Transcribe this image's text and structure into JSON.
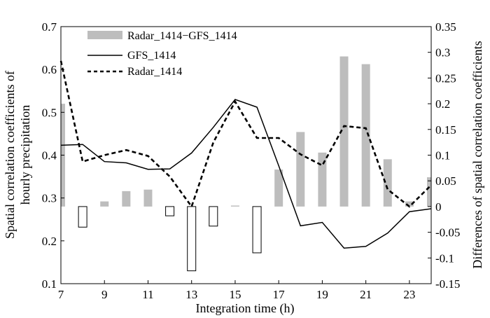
{
  "chart_data": {
    "type": "bar+line",
    "title": "",
    "xlabel": "Integration time (h)",
    "ylabel_left": "Spatial correlation coefficients of hourly precipitation",
    "ylabel_left_lines": [
      "Spatial correlation coefficients of",
      "hourly precipitation"
    ],
    "ylabel_right": "Differences of spatial correlation coefficients",
    "x_ticks": [
      7,
      9,
      11,
      13,
      15,
      17,
      19,
      21,
      23
    ],
    "xlim": [
      7,
      24
    ],
    "ylim_left": [
      0.1,
      0.7
    ],
    "ylim_right": [
      -0.15,
      0.35
    ],
    "y_ticks_left": [
      "0.1",
      "0.2",
      "0.3",
      "0.4",
      "0.5",
      "0.6",
      "0.7"
    ],
    "y_ticks_right": [
      "-0.15",
      "-0.1",
      "-0.05",
      "0",
      "0.05",
      "0.1",
      "0.15",
      "0.2",
      "0.25",
      "0.3",
      "0.35"
    ],
    "legend_position": "top-left",
    "colors": {
      "positive_bar": "#bdbdbd",
      "negative_bar_fill": "#ffffff",
      "stroke": "#000000"
    },
    "series": [
      {
        "name": "Radar_1414−GFS_1414",
        "kind": "bar",
        "axis": "right",
        "x": [
          7,
          8,
          9,
          10,
          11,
          12,
          13,
          14,
          15,
          16,
          17,
          18,
          19,
          20,
          21,
          22,
          23,
          24
        ],
        "values": [
          0.2,
          -0.04,
          0.01,
          0.03,
          0.033,
          -0.018,
          -0.125,
          -0.038,
          0.002,
          -0.09,
          0.072,
          0.145,
          0.105,
          0.292,
          0.277,
          0.092,
          0.01,
          0.057
        ]
      },
      {
        "name": "GFS_1414",
        "kind": "line",
        "style": "solid",
        "axis": "left",
        "x": [
          7,
          8,
          9,
          10,
          11,
          12,
          13,
          14,
          15,
          16,
          17,
          18,
          19,
          20,
          21,
          22,
          23,
          24
        ],
        "values": [
          0.423,
          0.425,
          0.385,
          0.382,
          0.367,
          0.368,
          0.405,
          0.465,
          0.53,
          0.512,
          0.375,
          0.235,
          0.243,
          0.183,
          0.187,
          0.218,
          0.268,
          0.275
        ]
      },
      {
        "name": "Radar_1414",
        "kind": "line",
        "style": "dashed",
        "axis": "left",
        "x": [
          7,
          8,
          9,
          10,
          11,
          12,
          13,
          14,
          15,
          16,
          17,
          18,
          19,
          20,
          21,
          22,
          23,
          24
        ],
        "values": [
          0.62,
          0.385,
          0.4,
          0.412,
          0.398,
          0.35,
          0.28,
          0.43,
          0.525,
          0.44,
          0.44,
          0.402,
          0.376,
          0.468,
          0.463,
          0.32,
          0.28,
          0.33
        ]
      }
    ]
  }
}
